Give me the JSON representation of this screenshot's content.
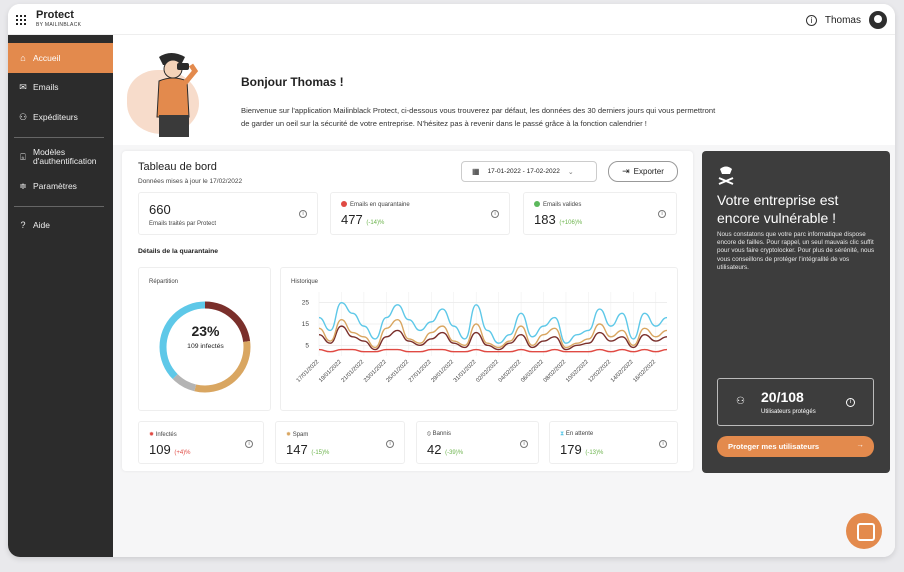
{
  "app": {
    "name": "Protect",
    "byline": "BY MAILINBLACK",
    "user": "Thomas"
  },
  "sidebar": {
    "items": [
      {
        "label": "Accueil",
        "icon": "home-icon"
      },
      {
        "label": "Emails",
        "icon": "mail-icon"
      },
      {
        "label": "Expéditeurs",
        "icon": "users-icon"
      },
      {
        "label": "Modèles d'authentification",
        "line1": "Modèles",
        "line2": "d'authentification",
        "icon": "template-icon"
      },
      {
        "label": "Paramètres",
        "icon": "settings-icon"
      },
      {
        "label": "Aide",
        "icon": "help-icon"
      }
    ]
  },
  "welcome": {
    "title": "Bonjour Thomas !",
    "line1": "Bienvenue sur l'application Mailinblack Protect, ci-dessous vous trouverez par défaut, les données des 30 derniers jours qui vous permettront",
    "line2": "de garder un oeil sur la sécurité de votre entreprise. N'hésitez pas à revenir dans le passé grâce à la fonction calendrier !"
  },
  "dashboard": {
    "title": "Tableau de bord",
    "updated": "Données mises à jour le 17/02/2022",
    "date_range": "17-01-2022 - 17-02-2022",
    "export_label": "Exporter"
  },
  "stats": [
    {
      "value": "660",
      "label": "Emails traités par Protect"
    },
    {
      "value": "477",
      "label": "Emails en quarantaine",
      "delta": "(-14)%",
      "color": "#e04a43"
    },
    {
      "value": "183",
      "label": "Emails valides",
      "delta": "(+106)%",
      "color": "#5cb85c"
    }
  ],
  "quarantine": {
    "title": "Détails de la quarantaine",
    "repartition_title": "Répartition",
    "percent": "23%",
    "infected_label": "109 infectés",
    "historique_title": "Historique"
  },
  "donut": {
    "segments": [
      {
        "name": "Infectés",
        "value": 109,
        "color": "#7a2f2b"
      },
      {
        "name": "Spam",
        "value": 147,
        "color": "#d9a661"
      },
      {
        "name": "Bannis",
        "value": 42,
        "color": "#b4b4b4"
      },
      {
        "name": "En attente",
        "value": 179,
        "color": "#5ec8e8"
      }
    ]
  },
  "chart_data": {
    "type": "line",
    "x": [
      "17/01/2022",
      "18/01/2022",
      "19/01/2022",
      "20/01/2022",
      "21/01/2022",
      "22/01/2022",
      "23/01/2022",
      "24/01/2022",
      "25/01/2022",
      "26/01/2022",
      "27/01/2022",
      "28/01/2022",
      "29/01/2022",
      "30/01/2022",
      "31/01/2022",
      "01/02/2022",
      "02/02/2022",
      "03/02/2022",
      "04/02/2022",
      "05/02/2022",
      "06/02/2022",
      "07/02/2022",
      "08/02/2022",
      "09/02/2022",
      "10/02/2022",
      "11/02/2022",
      "12/02/2022",
      "13/02/2022",
      "14/02/2022",
      "15/02/2022",
      "16/02/2022",
      "17/02/2022"
    ],
    "x_tick_labels": [
      "17/01/2022",
      "19/01/2022",
      "21/01/2022",
      "23/01/2022",
      "25/01/2022",
      "27/01/2022",
      "29/01/2022",
      "31/01/2022",
      "02/02/2022",
      "04/02/2022",
      "06/02/2022",
      "08/02/2022",
      "10/02/2022",
      "12/02/2022",
      "14/02/2022",
      "16/02/2022"
    ],
    "y_ticks": [
      5,
      15,
      25
    ],
    "ylim": [
      0,
      30
    ],
    "series": [
      {
        "color": "#5ec8e8",
        "values": [
          18,
          12,
          25,
          20,
          14,
          8,
          18,
          24,
          17,
          12,
          16,
          22,
          14,
          8,
          24,
          12,
          6,
          10,
          20,
          9,
          14,
          18,
          6,
          10,
          12,
          22,
          14,
          20,
          8,
          20,
          14,
          18
        ]
      },
      {
        "color": "#d9a661",
        "values": [
          13,
          7,
          17,
          11,
          9,
          4,
          13,
          17,
          8,
          6,
          11,
          14,
          7,
          5,
          15,
          6,
          4,
          7,
          14,
          5,
          10,
          13,
          4,
          6,
          8,
          15,
          9,
          12,
          5,
          13,
          9,
          12
        ]
      },
      {
        "color": "#7a2f2b",
        "values": [
          10,
          6,
          14,
          9,
          7,
          3,
          9,
          12,
          7,
          5,
          8,
          11,
          6,
          4,
          11,
          5,
          3,
          6,
          10,
          4,
          7,
          9,
          3,
          5,
          6,
          11,
          7,
          9,
          4,
          10,
          7,
          9
        ]
      },
      {
        "color": "#e04a43",
        "values": [
          3,
          2,
          3,
          3,
          2,
          2,
          3,
          3,
          2,
          2,
          3,
          3,
          2,
          2,
          3,
          2,
          2,
          2,
          3,
          2,
          2,
          3,
          2,
          2,
          2,
          3,
          2,
          3,
          2,
          3,
          2,
          3
        ]
      }
    ]
  },
  "bottom_stats": [
    {
      "label": "Infectés",
      "value": "109",
      "delta": "(+4)%",
      "icon": "virus-icon"
    },
    {
      "label": "Spam",
      "value": "147",
      "delta": "(-15)%",
      "icon": "spam-icon"
    },
    {
      "label": "Bannis",
      "value": "42",
      "delta": "(-39)%",
      "icon": "ban-icon"
    },
    {
      "label": "En attente",
      "value": "179",
      "delta": "(-13)%",
      "icon": "hourglass-icon"
    }
  ],
  "promo": {
    "title": "Votre entreprise est encore vulnérable !",
    "text": "Nous constatons que votre parc informatique dispose encore de failles. Pour rappel, un seul mauvais clic suffit pour vous faire cryptolocker. Pour plus de sérénité, nous vous conseillons de protéger l'intégralité de vos utilisateurs.",
    "count": "20/108",
    "count_label": "Utilisateurs protégés",
    "button": "Proteger mes utilisateurs"
  }
}
